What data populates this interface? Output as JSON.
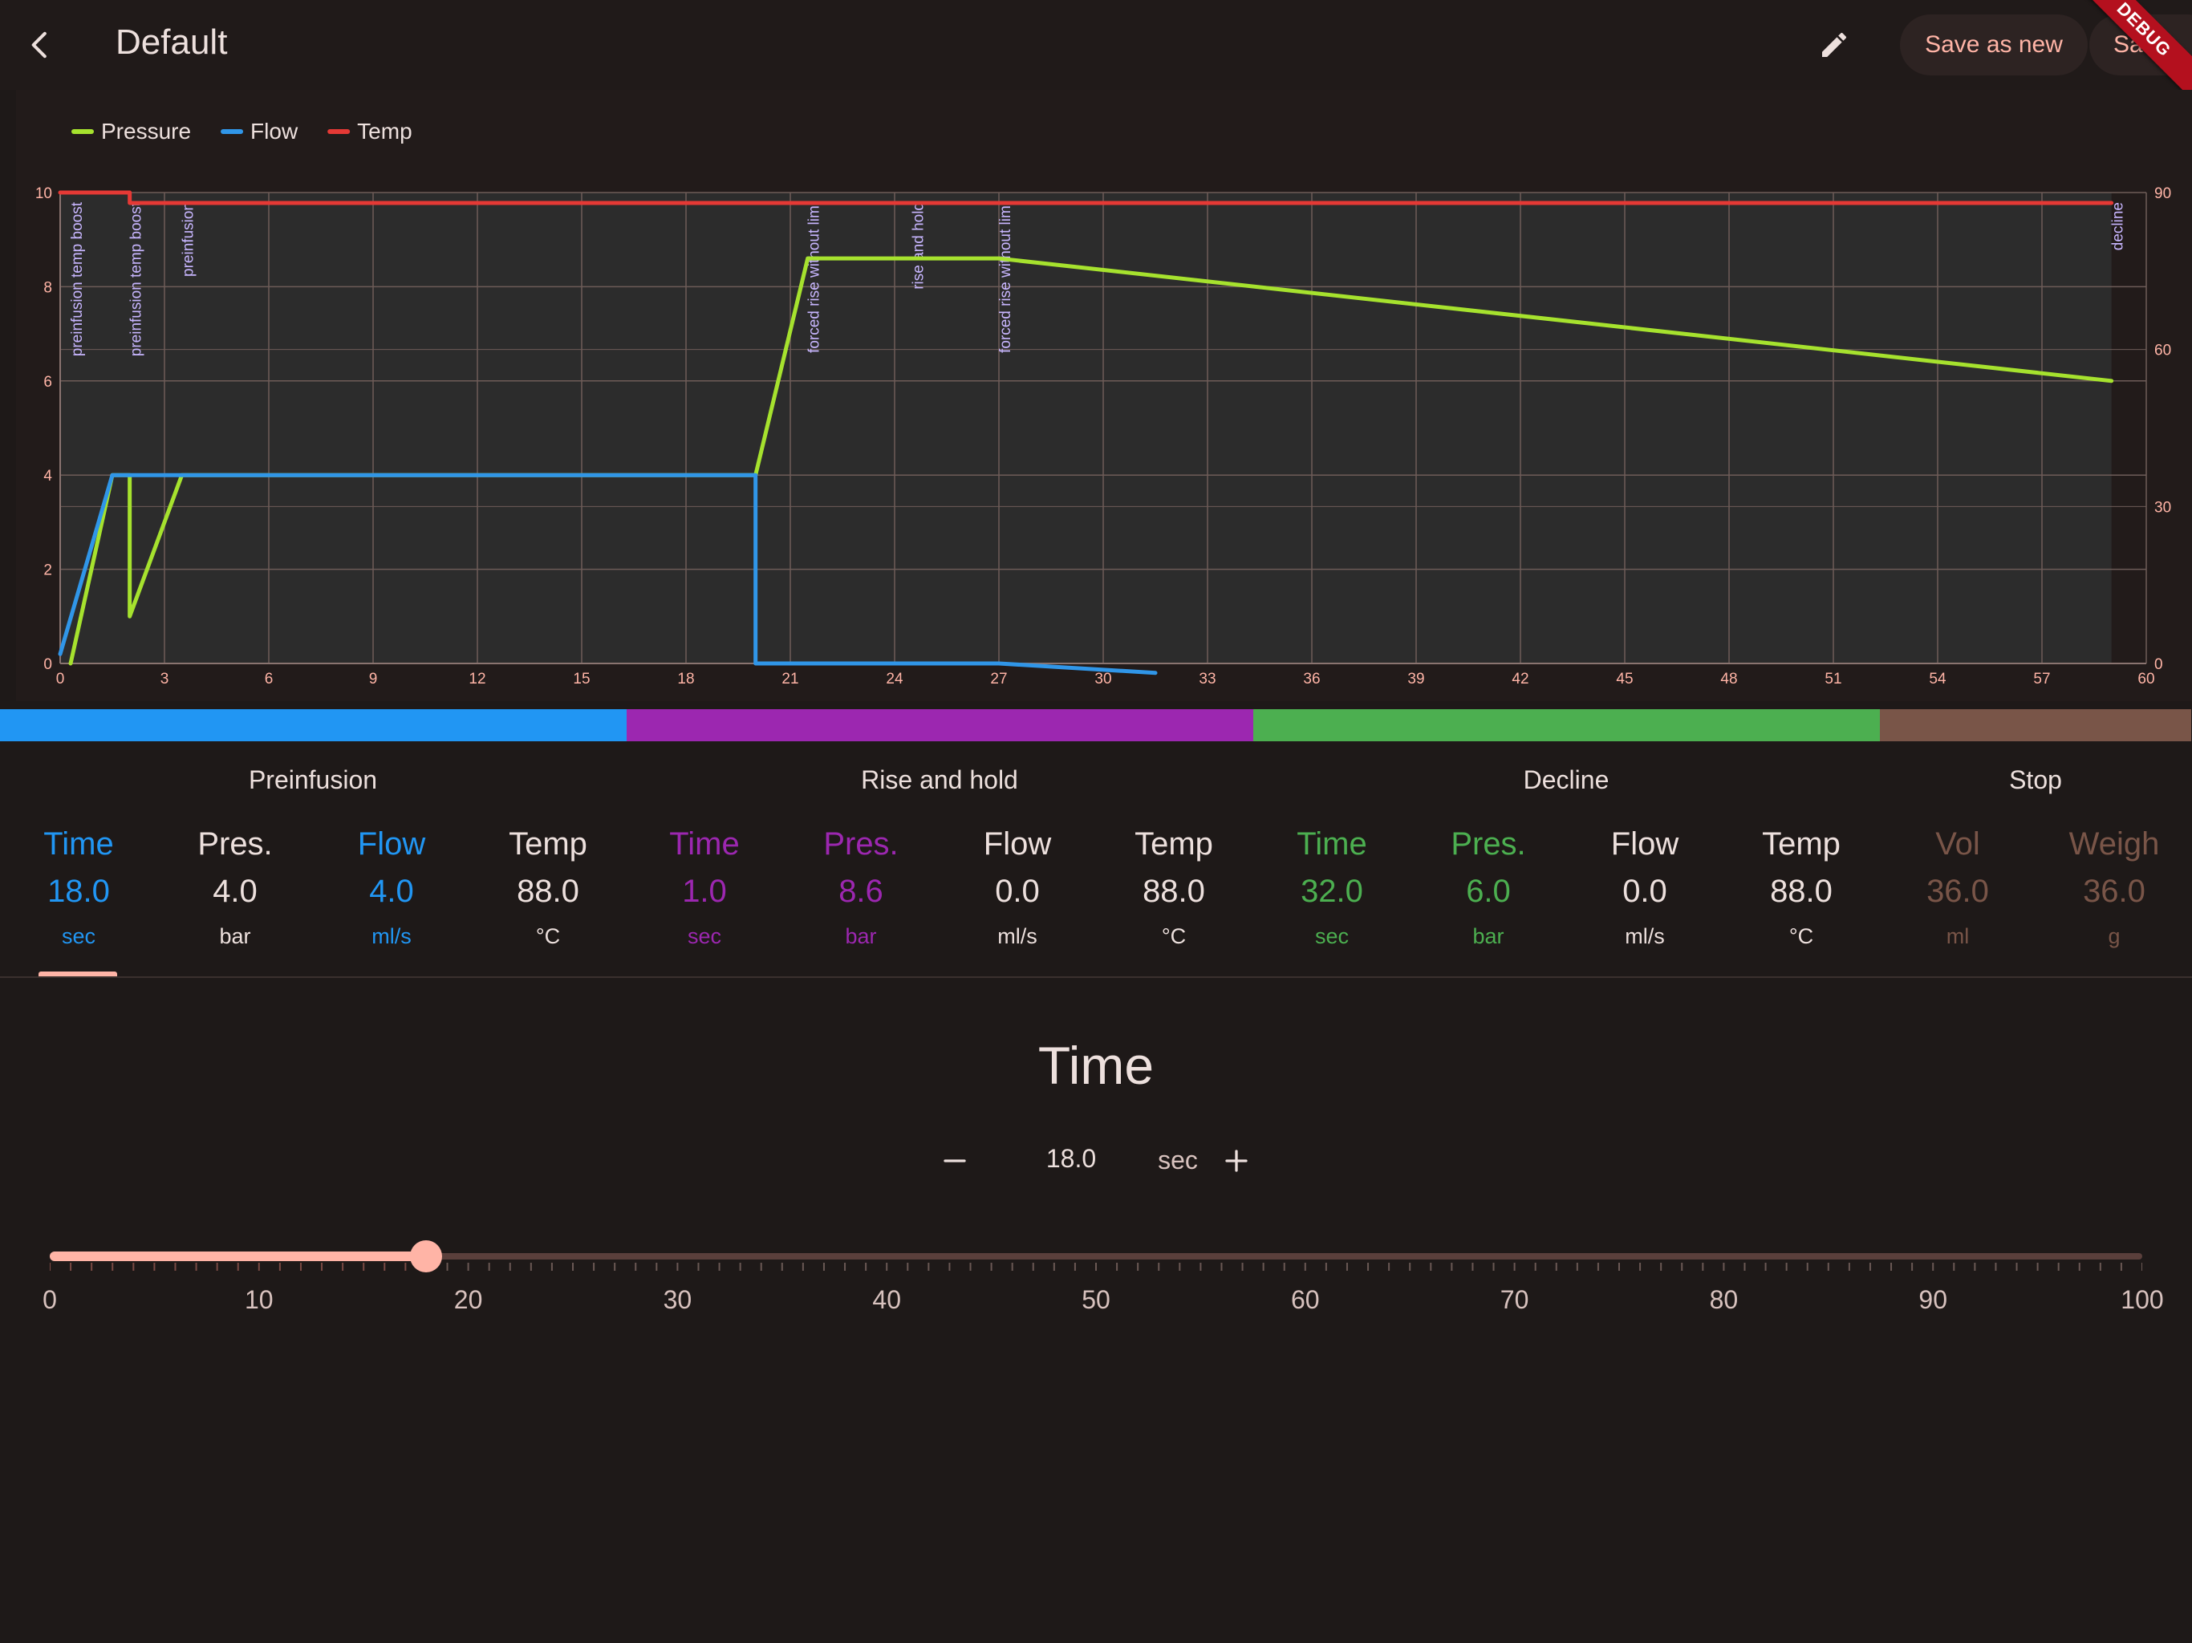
{
  "appbar": {
    "title": "Default",
    "save_as_new_label": "Save as new",
    "save_label": "Save",
    "debug_banner": "DEBUG",
    "back_icon": "chevron-left-icon",
    "edit_icon": "pencil-icon"
  },
  "colors": {
    "pressure": "#a6e22e",
    "flow": "#3096e8",
    "temp": "#e53935",
    "preinfusion": "#2196f3",
    "rise_and_hold": "#9c27b0",
    "decline": "#4caf50",
    "stop": "#795548",
    "accent": "#ffb4a6"
  },
  "chart_data": {
    "type": "line",
    "legend": [
      "Pressure",
      "Flow",
      "Temp"
    ],
    "legend_position": "top-left",
    "grid": true,
    "x": {
      "min": 0,
      "max": 60,
      "ticks": [
        0,
        3,
        6,
        9,
        12,
        15,
        18,
        21,
        24,
        27,
        30,
        33,
        36,
        39,
        42,
        45,
        48,
        51,
        54,
        57,
        60
      ]
    },
    "y_left": {
      "min": 0,
      "max": 10,
      "ticks": [
        0,
        2,
        4,
        6,
        8,
        10
      ]
    },
    "y_right": {
      "min": 0,
      "max": 90,
      "ticks": [
        0,
        30,
        60,
        90
      ]
    },
    "series": [
      {
        "name": "Pressure",
        "axis": "left",
        "points": [
          [
            0.3,
            0
          ],
          [
            1.5,
            4
          ],
          [
            2.0,
            4
          ],
          [
            2.0,
            1
          ],
          [
            3.5,
            4
          ],
          [
            20.0,
            4
          ],
          [
            21.5,
            8.6
          ],
          [
            27.0,
            8.6
          ],
          [
            59.0,
            6.0
          ]
        ]
      },
      {
        "name": "Flow",
        "axis": "left",
        "points": [
          [
            0,
            0.2
          ],
          [
            1.5,
            4
          ],
          [
            20.0,
            4
          ],
          [
            20.0,
            0
          ],
          [
            27.0,
            0
          ],
          [
            31.5,
            -0.2
          ]
        ]
      },
      {
        "name": "Temp",
        "axis": "right",
        "points": [
          [
            0,
            90
          ],
          [
            2.0,
            90
          ],
          [
            2.0,
            88
          ],
          [
            59.0,
            88
          ]
        ]
      }
    ],
    "annotations": [
      {
        "x": 0.3,
        "label": "preinfusion temp boost"
      },
      {
        "x": 2.0,
        "label": "preinfusion temp boost"
      },
      {
        "x": 3.5,
        "label": "preinfusion"
      },
      {
        "x": 21.5,
        "label": "forced rise without limi"
      },
      {
        "x": 24.5,
        "label": "rise and hold"
      },
      {
        "x": 27.0,
        "label": "forced rise without limi"
      },
      {
        "x": 59.0,
        "label": "decline"
      }
    ],
    "shaded_until_x": 59.0
  },
  "phases": [
    {
      "title": "Preinfusion",
      "color_key": "preinfusion",
      "params": [
        {
          "label": "Time",
          "value": "18.0",
          "unit": "sec",
          "active": true
        },
        {
          "label": "Pres.",
          "value": "4.0",
          "unit": "bar",
          "active": false
        },
        {
          "label": "Flow",
          "value": "4.0",
          "unit": "ml/s",
          "active": true
        },
        {
          "label": "Temp",
          "value": "88.0",
          "unit": "°C",
          "active": false
        }
      ]
    },
    {
      "title": "Rise and hold",
      "color_key": "rise_and_hold",
      "params": [
        {
          "label": "Time",
          "value": "1.0",
          "unit": "sec",
          "active": true
        },
        {
          "label": "Pres.",
          "value": "8.6",
          "unit": "bar",
          "active": true
        },
        {
          "label": "Flow",
          "value": "0.0",
          "unit": "ml/s",
          "active": false
        },
        {
          "label": "Temp",
          "value": "88.0",
          "unit": "°C",
          "active": false
        }
      ]
    },
    {
      "title": "Decline",
      "color_key": "decline",
      "params": [
        {
          "label": "Time",
          "value": "32.0",
          "unit": "sec",
          "active": true
        },
        {
          "label": "Pres.",
          "value": "6.0",
          "unit": "bar",
          "active": true
        },
        {
          "label": "Flow",
          "value": "0.0",
          "unit": "ml/s",
          "active": false
        },
        {
          "label": "Temp",
          "value": "88.0",
          "unit": "°C",
          "active": false
        }
      ]
    },
    {
      "title": "Stop",
      "color_key": "stop",
      "params": [
        {
          "label": "Vol",
          "value": "36.0",
          "unit": "ml",
          "active": true
        },
        {
          "label": "Weigh",
          "value": "36.0",
          "unit": "g",
          "active": true
        }
      ]
    }
  ],
  "editor": {
    "title": "Time",
    "value": "18.0",
    "unit": "sec",
    "minus_icon": "minus-icon",
    "plus_icon": "plus-icon",
    "slider_min": 0,
    "slider_max": 100,
    "slider_value": 18.0,
    "slider_labels": [
      "0",
      "10",
      "20",
      "30",
      "40",
      "50",
      "60",
      "70",
      "80",
      "90",
      "100"
    ]
  }
}
